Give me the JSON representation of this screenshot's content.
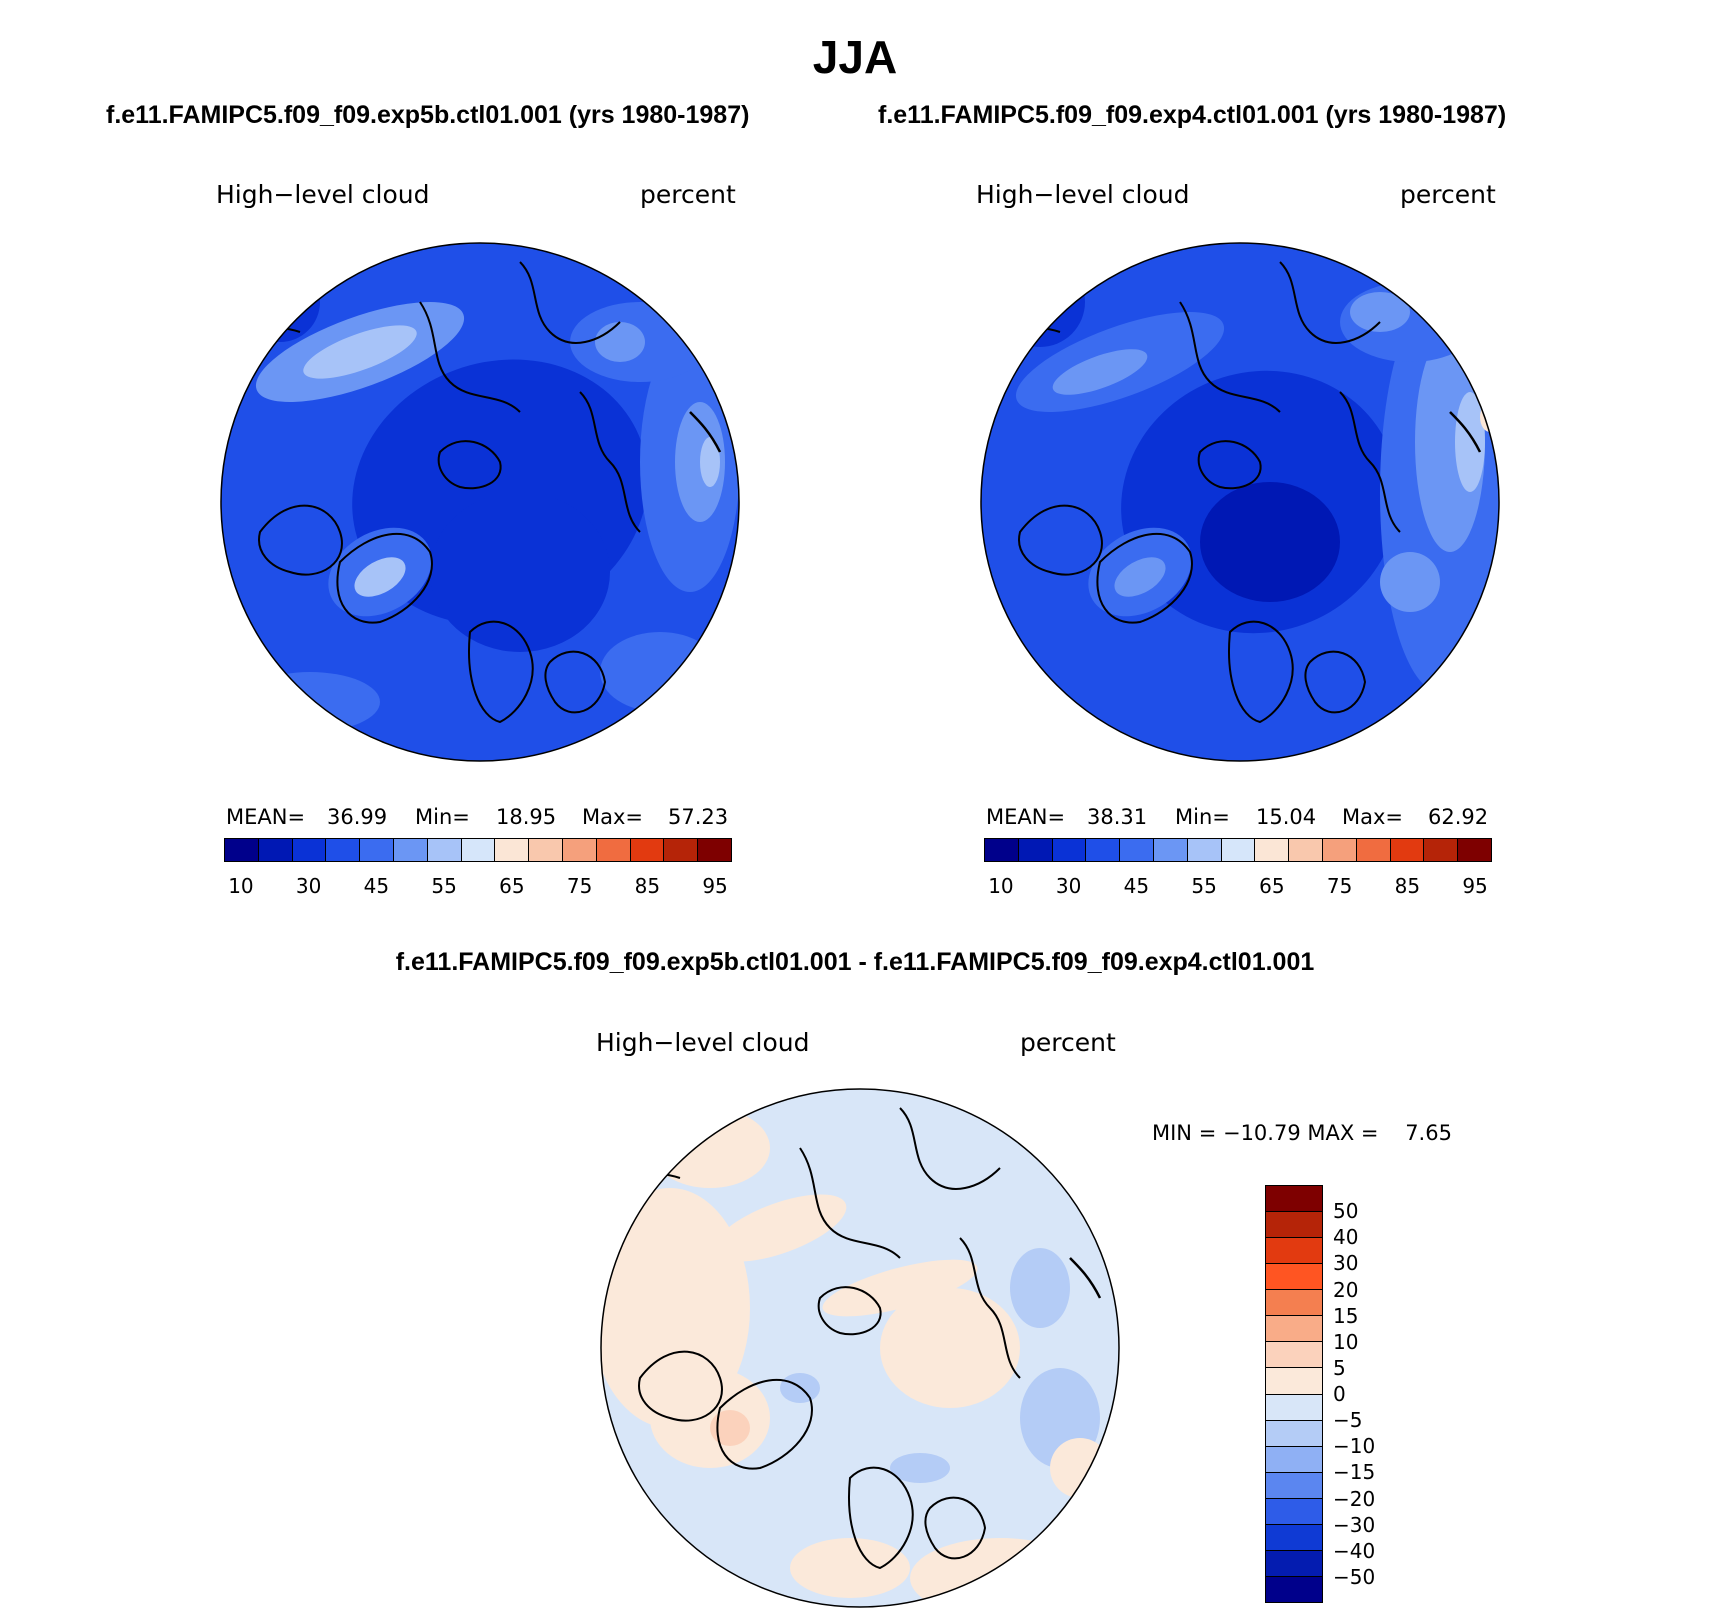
{
  "title": "JJA",
  "panels": {
    "left": {
      "case": "f.e11.FAMIPC5.f09_f09.exp5b.ctl01.001 (yrs 1980-1987)",
      "variable": "High−level cloud",
      "units": "percent",
      "stats": {
        "mean_label": "MEAN=",
        "mean": "36.99",
        "min_label": "Min=",
        "min": "18.95",
        "max_label": "Max=",
        "max": "57.23"
      }
    },
    "right": {
      "case": "f.e11.FAMIPC5.f09_f09.exp4.ctl01.001 (yrs 1980-1987)",
      "variable": "High−level cloud",
      "units": "percent",
      "stats": {
        "mean_label": "MEAN=",
        "mean": "38.31",
        "min_label": "Min=",
        "min": "15.04",
        "max_label": "Max=",
        "max": "62.92"
      }
    },
    "diff": {
      "case": "f.e11.FAMIPC5.f09_f09.exp5b.ctl01.001 - f.e11.FAMIPC5.f09_f09.exp4.ctl01.001",
      "variable": "High−level cloud",
      "units": "percent",
      "minmax": "MIN = −10.79 MAX =    7.65"
    }
  },
  "colorbar": {
    "colors": [
      "#00008b",
      "#0018b4",
      "#0a32d6",
      "#1f4fe8",
      "#3b6cf0",
      "#6b96f4",
      "#a7c3f8",
      "#d6e6fa",
      "#fbe6d6",
      "#f9c8ad",
      "#f5a07c",
      "#f06c40",
      "#e23a10",
      "#b52408",
      "#7e0000"
    ],
    "ticks": [
      "10",
      "30",
      "45",
      "55",
      "65",
      "75",
      "85",
      "95"
    ]
  },
  "diff_colorbar": {
    "colors": [
      "#7e0000",
      "#b52408",
      "#e23a10",
      "#ff5522",
      "#f47f50",
      "#f9ac88",
      "#fbd2bc",
      "#fbe9da",
      "#d8e6f8",
      "#b4ccf6",
      "#8fb0f4",
      "#5b86f0",
      "#2e5ce8",
      "#0f3ad4",
      "#041cb0",
      "#00008b"
    ],
    "ticks": [
      "50",
      "40",
      "30",
      "20",
      "15",
      "10",
      "5",
      "0",
      "−5",
      "−10",
      "−15",
      "−20",
      "−30",
      "−40",
      "−50"
    ]
  }
}
